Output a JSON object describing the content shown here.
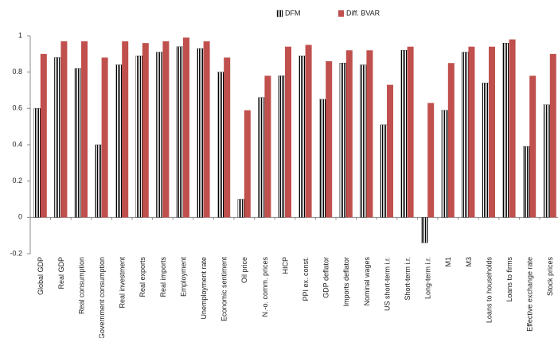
{
  "chart_data": {
    "type": "bar",
    "categories": [
      "Global GDP",
      "Real GDP",
      "Real consumption",
      "Government consumption",
      "Real investment",
      "Real exports",
      "Real imports",
      "Employment",
      "Unemployment rate",
      "Economic sentiment",
      "Oil price",
      "N.-o. comm. prices",
      "HICP",
      "PPI ex. const.",
      "GDP deflator",
      "Imports deflator",
      "Nominal wages",
      "US short-term i.r.",
      "Short-term i.r.",
      "Long-term i.r.",
      "M1",
      "M3",
      "Loans to households",
      "Loans to firms",
      "Effective exchange rate",
      "Stock prices"
    ],
    "series": [
      {
        "name": "DFM",
        "color": "#000000",
        "hatch": "vertical",
        "values": [
          0.6,
          0.88,
          0.82,
          0.4,
          0.84,
          0.89,
          0.91,
          0.94,
          0.93,
          0.8,
          0.1,
          0.66,
          0.78,
          0.89,
          0.65,
          0.85,
          0.84,
          0.51,
          0.92,
          -0.14,
          0.59,
          0.91,
          0.74,
          0.96,
          0.39,
          0.62
        ]
      },
      {
        "name": "Diff. BVAR",
        "color": "#c0504d",
        "values": [
          0.9,
          0.97,
          0.97,
          0.88,
          0.97,
          0.96,
          0.97,
          0.99,
          0.97,
          0.88,
          0.59,
          0.78,
          0.94,
          0.95,
          0.86,
          0.92,
          0.92,
          0.73,
          0.94,
          0.63,
          0.85,
          0.94,
          0.94,
          0.98,
          0.78,
          0.9
        ]
      }
    ],
    "ylim": [
      -0.2,
      1
    ],
    "yticks": [
      -0.2,
      0,
      0.2,
      0.4,
      0.6,
      0.8,
      1
    ],
    "legend": "top"
  }
}
